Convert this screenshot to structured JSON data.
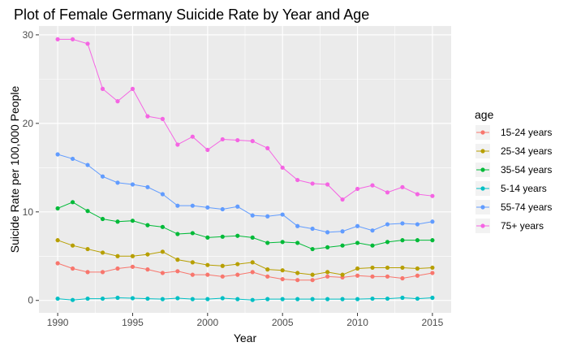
{
  "chart_data": {
    "type": "line",
    "title": "Plot of Female Germany Suicide Rate by Year and Age",
    "xlabel": "Year",
    "ylabel": "Suicide Rate per 100,000 People",
    "xlim": [
      1988.75,
      2016.25
    ],
    "ylim": [
      -1.4,
      31.0
    ],
    "x_ticks": [
      1990,
      1995,
      2000,
      2005,
      2010,
      2015
    ],
    "y_ticks": [
      0,
      10,
      20,
      30
    ],
    "grid": true,
    "legend_title": "age",
    "legend_position": "right",
    "x": [
      1990,
      1991,
      1992,
      1993,
      1994,
      1995,
      1996,
      1997,
      1998,
      1999,
      2000,
      2001,
      2002,
      2003,
      2004,
      2005,
      2006,
      2007,
      2008,
      2009,
      2010,
      2011,
      2012,
      2013,
      2014,
      2015
    ],
    "series": [
      {
        "name": "15-24 years",
        "color": "#F8766D",
        "values": [
          4.2,
          3.6,
          3.2,
          3.2,
          3.6,
          3.8,
          3.5,
          3.1,
          3.3,
          2.9,
          2.9,
          2.7,
          2.9,
          3.2,
          2.7,
          2.4,
          2.3,
          2.3,
          2.7,
          2.6,
          2.8,
          2.7,
          2.7,
          2.5,
          2.8,
          3.1
        ]
      },
      {
        "name": "25-34 years",
        "color": "#B79F00",
        "values": [
          6.8,
          6.2,
          5.8,
          5.4,
          5.0,
          5.0,
          5.2,
          5.5,
          4.6,
          4.3,
          4.0,
          3.9,
          4.1,
          4.3,
          3.5,
          3.4,
          3.1,
          2.9,
          3.2,
          2.9,
          3.6,
          3.7,
          3.7,
          3.7,
          3.6,
          3.7
        ]
      },
      {
        "name": "35-54 years",
        "color": "#00BA38",
        "values": [
          10.4,
          11.1,
          10.1,
          9.2,
          8.9,
          9.0,
          8.5,
          8.3,
          7.5,
          7.6,
          7.1,
          7.2,
          7.3,
          7.1,
          6.5,
          6.6,
          6.5,
          5.8,
          6.0,
          6.2,
          6.5,
          6.2,
          6.6,
          6.8,
          6.8,
          6.8
        ]
      },
      {
        "name": "5-14 years",
        "color": "#00BFC4",
        "values": [
          0.2,
          0.05,
          0.2,
          0.2,
          0.3,
          0.25,
          0.2,
          0.15,
          0.25,
          0.15,
          0.15,
          0.25,
          0.15,
          0.05,
          0.15,
          0.15,
          0.15,
          0.15,
          0.15,
          0.15,
          0.15,
          0.2,
          0.2,
          0.3,
          0.2,
          0.3
        ]
      },
      {
        "name": "55-74 years",
        "color": "#619CFF",
        "values": [
          16.5,
          16.0,
          15.3,
          14.0,
          13.3,
          13.1,
          12.8,
          12.0,
          10.7,
          10.7,
          10.5,
          10.3,
          10.6,
          9.6,
          9.5,
          9.7,
          8.4,
          8.1,
          7.7,
          7.8,
          8.4,
          7.9,
          8.6,
          8.7,
          8.6,
          8.9
        ]
      },
      {
        "name": "75+ years",
        "color": "#F564E3",
        "values": [
          29.5,
          29.5,
          29.0,
          23.9,
          22.5,
          23.9,
          20.8,
          20.5,
          17.6,
          18.5,
          17.0,
          18.2,
          18.1,
          18.0,
          17.2,
          15.0,
          13.6,
          13.2,
          13.1,
          11.4,
          12.6,
          13.0,
          12.2,
          12.8,
          12.0,
          11.8
        ]
      }
    ]
  }
}
